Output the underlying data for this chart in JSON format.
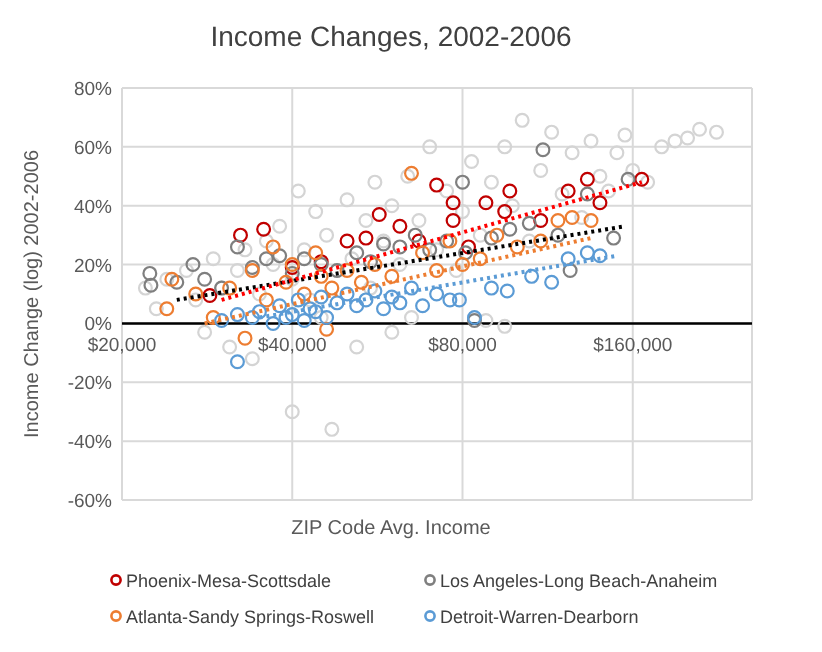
{
  "chart_data": {
    "type": "scatter",
    "title": "Income Changes, 2002-2006",
    "xlabel": "ZIP Code Avg. Income",
    "ylabel": "Income Change (log) 2002-2006",
    "log": "x",
    "grid": true,
    "legend": "bottom",
    "marker": "circle",
    "xlim": [
      20000,
      260000
    ],
    "ylim": [
      -60,
      80
    ],
    "xticks": [
      {
        "value": 20000,
        "label": "$20,000"
      },
      {
        "value": 40000,
        "label": "$40,000"
      },
      {
        "value": 80000,
        "label": "$80,000"
      },
      {
        "value": 160000,
        "label": "$160,000"
      }
    ],
    "yticks": [
      {
        "value": -60,
        "label": "-60%"
      },
      {
        "value": -40,
        "label": "-40%"
      },
      {
        "value": -20,
        "label": "-20%"
      },
      {
        "value": 0,
        "label": "0%"
      },
      {
        "value": 20,
        "label": "20%"
      },
      {
        "value": 40,
        "label": "40%"
      },
      {
        "value": 60,
        "label": "60%"
      },
      {
        "value": 80,
        "label": "80%"
      }
    ],
    "series": [
      {
        "color": "#d4d4d4",
        "x": [
          22000,
          23000,
          24000,
          26000,
          27000,
          28000,
          29000,
          30000,
          31000,
          32000,
          33000,
          34000,
          35000,
          36000,
          37000,
          38000,
          40000,
          40000,
          41000,
          42000,
          43000,
          44000,
          46000,
          47000,
          48000,
          50000,
          51000,
          52000,
          54000,
          55000,
          56000,
          58000,
          60000,
          62000,
          64000,
          65000,
          67000,
          70000,
          72000,
          75000,
          78000,
          80000,
          83000,
          86000,
          88000,
          90000,
          95000,
          98000,
          102000,
          105000,
          110000,
          115000,
          120000,
          125000,
          130000,
          135000,
          140000,
          145000,
          150000,
          155000,
          160000,
          170000,
          180000,
          190000,
          200000,
          210000,
          225000,
          95000,
          60000,
          45000
        ],
        "values": [
          12,
          5,
          15,
          18,
          8,
          -3,
          22,
          12,
          -8,
          18,
          25,
          -12,
          10,
          28,
          20,
          33,
          -30,
          15,
          45,
          25,
          8,
          38,
          30,
          -36,
          18,
          42,
          22,
          -8,
          35,
          12,
          48,
          28,
          40,
          20,
          50,
          2,
          35,
          60,
          25,
          45,
          18,
          38,
          55,
          30,
          1,
          48,
          60,
          40,
          69,
          28,
          52,
          65,
          44,
          58,
          36,
          62,
          50,
          45,
          58,
          64,
          52,
          48,
          60,
          62,
          63,
          66,
          65,
          -1,
          -3,
          2
        ]
      },
      {
        "name": "Phoenix-Mesa-Scottsdale",
        "color": "#c00000",
        "x": [
          28600,
          32400,
          35600,
          40000,
          45000,
          50000,
          54000,
          57000,
          62000,
          67000,
          72000,
          77000,
          77000,
          82000,
          88000,
          95000,
          97000,
          110000,
          123000,
          133000,
          140000,
          166000
        ],
        "values": [
          9.5,
          30,
          32,
          19,
          21,
          28,
          29,
          37,
          33,
          28,
          47,
          41,
          35,
          26,
          41,
          38,
          45,
          35,
          45,
          49,
          41,
          49
        ]
      },
      {
        "name": "Los Angeles-Long Beach-Anaheim",
        "color": "#7f7f7f",
        "x": [
          22400,
          22500,
          25000,
          26700,
          28000,
          30000,
          32000,
          34000,
          36000,
          38000,
          40000,
          42000,
          45000,
          48000,
          52000,
          55000,
          58000,
          62000,
          66000,
          70000,
          75000,
          80000,
          81000,
          84000,
          90000,
          97000,
          105000,
          111000,
          118000,
          124000,
          133000,
          148000,
          157000
        ],
        "values": [
          17,
          13,
          14,
          20,
          15,
          12,
          26,
          19,
          22,
          23,
          17,
          22,
          20,
          18,
          24,
          21,
          27,
          26,
          30,
          25,
          28,
          48,
          24,
          1,
          29,
          32,
          34,
          59,
          30,
          18,
          44,
          29,
          49
        ]
      },
      {
        "name": "Atlanta-Sandy Springs-Roswell",
        "color": "#ed7d31",
        "x": [
          24000,
          24500,
          27000,
          29000,
          31000,
          33000,
          34000,
          36000,
          37000,
          39000,
          40000,
          42000,
          44000,
          45000,
          46000,
          47000,
          50000,
          53000,
          56000,
          60000,
          65000,
          68000,
          72000,
          76000,
          80000,
          86000,
          92000,
          100000,
          110000,
          118000,
          125000,
          135000
        ],
        "values": [
          5,
          15,
          10,
          2,
          12,
          -5,
          18,
          8,
          26,
          14,
          20,
          10,
          24,
          16,
          -2,
          12,
          18,
          14,
          20,
          16,
          51,
          24,
          18,
          28,
          20,
          22,
          30,
          26,
          28,
          35,
          36,
          35
        ]
      },
      {
        "name": "Detroit-Warren-Dearborn",
        "color": "#5b9bd5",
        "x": [
          30000,
          32000,
          32000,
          34000,
          35000,
          37000,
          38000,
          39000,
          40000,
          41000,
          42000,
          43000,
          44000,
          45000,
          46000,
          48000,
          50000,
          52000,
          54000,
          56000,
          58000,
          60000,
          62000,
          65000,
          68000,
          72000,
          76000,
          79000,
          84000,
          90000,
          96000,
          106000,
          115000,
          123000,
          133000,
          140000
        ],
        "values": [
          1,
          -13,
          3,
          2,
          4,
          0,
          6,
          2,
          3,
          8,
          1,
          5,
          4,
          9,
          2,
          7,
          10,
          6,
          8,
          11,
          5,
          9,
          7,
          12,
          6,
          10,
          8,
          8,
          2,
          12,
          11,
          16,
          14,
          22,
          24,
          23
        ]
      },
      {
        "type": "line",
        "line_style": "dotted",
        "marker": "none",
        "color": "#000000",
        "x": [
          25000,
          155000
        ],
        "values": [
          8,
          33
        ]
      },
      {
        "type": "line",
        "line_style": "dotted",
        "marker": "none",
        "color": "#ff0000",
        "x": [
          30000,
          166000
        ],
        "values": [
          8,
          48
        ]
      },
      {
        "type": "line",
        "line_style": "dotted",
        "marker": "none",
        "color": "#ed7d31",
        "x": [
          28000,
          135000
        ],
        "values": [
          0,
          29
        ]
      },
      {
        "type": "line",
        "line_style": "dotted",
        "marker": "none",
        "color": "#5b9bd5",
        "x": [
          35000,
          150000
        ],
        "values": [
          2,
          23
        ]
      }
    ]
  }
}
